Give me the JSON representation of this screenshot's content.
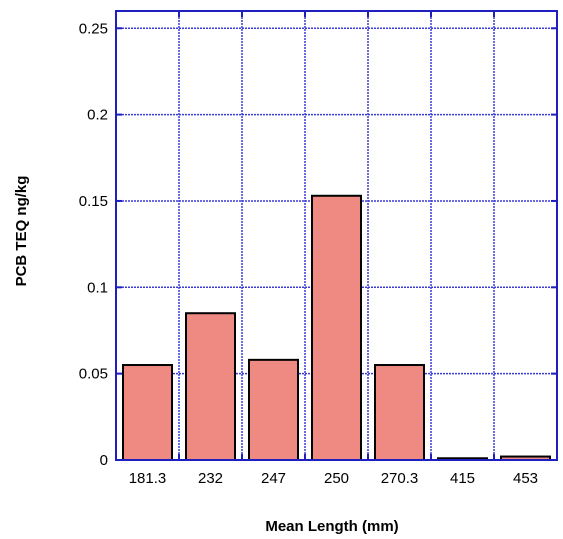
{
  "chart_data": {
    "type": "bar",
    "title": "",
    "xlabel": "Mean Length (mm)",
    "ylabel": "PCB TEQ ng/kg",
    "categories": [
      "181.3",
      "232",
      "247",
      "250",
      "270.3",
      "415",
      "453"
    ],
    "values": [
      0.055,
      0.085,
      0.058,
      0.153,
      0.055,
      0.001,
      0.002
    ],
    "ylim": [
      0,
      0.26
    ],
    "yticks": [
      0,
      0.05,
      0.1,
      0.15,
      0.2,
      0.25
    ],
    "ytick_labels": [
      "0",
      "0.05",
      "0.1",
      "0.15",
      "0.2",
      "0.25"
    ],
    "grid": true,
    "colors": {
      "bar_fill": "#ee8a82",
      "bar_stroke": "#000000",
      "grid": "#3b3bd6",
      "frame": "#1f1fbf"
    }
  }
}
